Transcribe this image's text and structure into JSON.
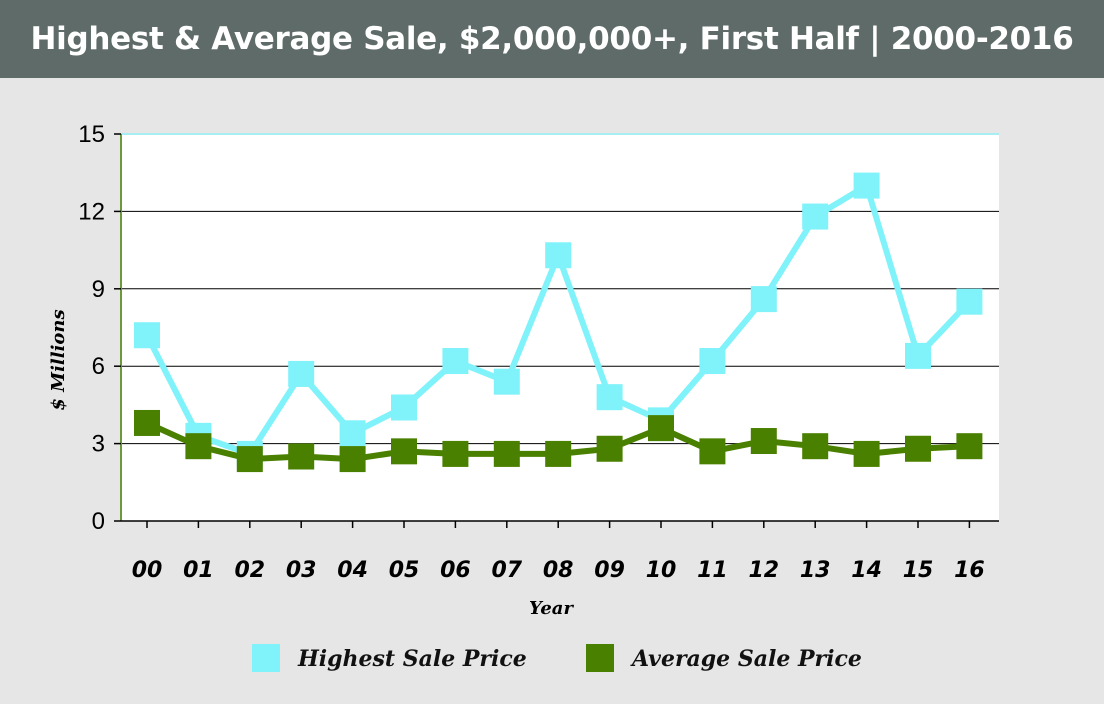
{
  "chart_data": {
    "type": "line",
    "title": "Highest & Average Sale, $2,000,000+, First Half | 2000-2016",
    "xlabel": "Year",
    "ylabel": "$ Millions",
    "categories": [
      "00",
      "01",
      "02",
      "03",
      "04",
      "05",
      "06",
      "07",
      "08",
      "09",
      "10",
      "11",
      "12",
      "13",
      "14",
      "15",
      "16"
    ],
    "ylim": [
      0,
      15
    ],
    "yticks": [
      0,
      3,
      6,
      9,
      12,
      15
    ],
    "grid": true,
    "legend": "bottom",
    "series": [
      {
        "name": "Highest Sale Price",
        "color": "#80f2fa",
        "values": [
          7.2,
          3.3,
          2.6,
          5.7,
          3.4,
          4.4,
          6.2,
          5.4,
          10.3,
          4.8,
          3.9,
          6.2,
          8.6,
          11.8,
          13.0,
          6.4,
          8.5
        ]
      },
      {
        "name": "Average Sale Price",
        "color": "#4a8000",
        "values": [
          3.8,
          2.9,
          2.4,
          2.5,
          2.4,
          2.7,
          2.6,
          2.6,
          2.6,
          2.8,
          3.6,
          2.7,
          3.1,
          2.9,
          2.6,
          2.8,
          2.9
        ]
      }
    ]
  }
}
